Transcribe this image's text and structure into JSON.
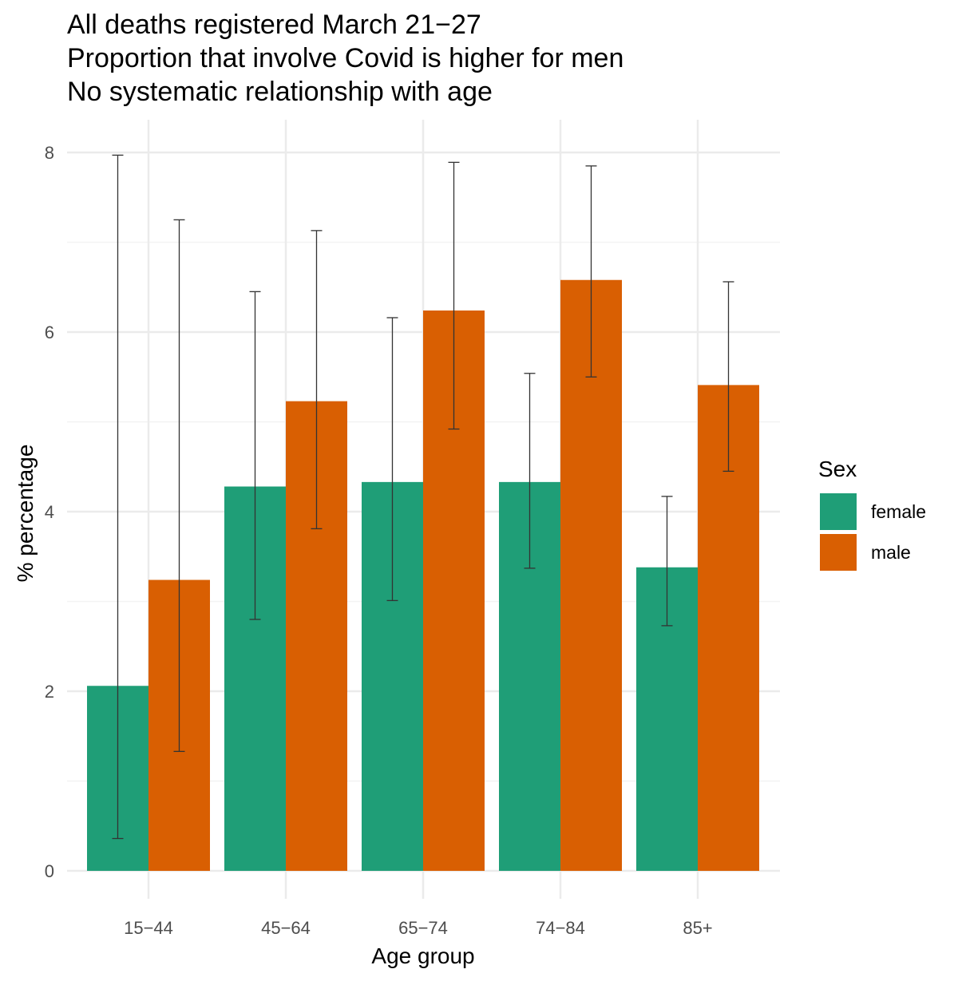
{
  "chart_data": {
    "type": "bar",
    "title": [
      "All deaths registered March 21−27",
      "Proportion that involve Covid is higher for men",
      "No systematic relationship with age"
    ],
    "xlabel": "Age group",
    "ylabel": "% percentage",
    "ylim": [
      0,
      8
    ],
    "yticks": [
      0,
      2,
      4,
      6,
      8
    ],
    "grid": true,
    "categories": [
      "15−44",
      "45−64",
      "65−74",
      "74−84",
      "85+"
    ],
    "series": [
      {
        "name": "female",
        "color": "#1f9e77",
        "values": [
          2.06,
          4.28,
          4.33,
          4.33,
          3.38
        ],
        "error_low": [
          0.36,
          2.8,
          3.01,
          3.37,
          2.73
        ],
        "error_high": [
          7.97,
          6.45,
          6.16,
          5.54,
          4.17
        ]
      },
      {
        "name": "male",
        "color": "#d95f02",
        "values": [
          3.24,
          5.23,
          6.24,
          6.58,
          5.41
        ],
        "error_low": [
          1.33,
          3.81,
          4.92,
          5.5,
          4.45
        ],
        "error_high": [
          7.25,
          7.13,
          7.89,
          7.85,
          6.56
        ]
      }
    ],
    "legend": {
      "title": "Sex",
      "position": "right"
    },
    "colors": {
      "grid_major": "#ebebeb",
      "grid_minor": "#f3f3f3",
      "errorbar": "#333333"
    }
  }
}
